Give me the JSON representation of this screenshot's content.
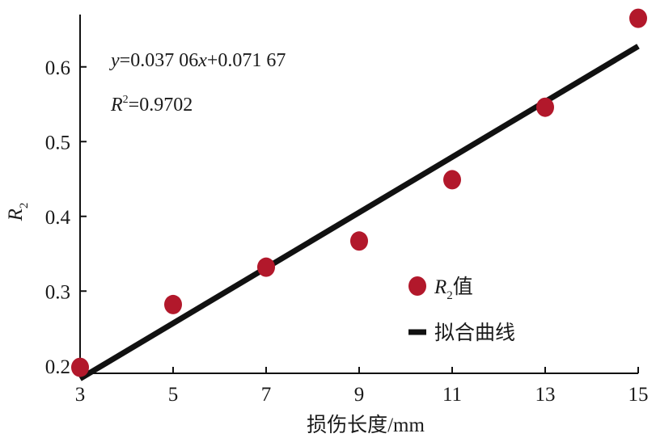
{
  "chart_data": {
    "type": "scatter",
    "title": "",
    "xlabel": "损伤长度/mm",
    "ylabel": {
      "base": "R",
      "sub": "2"
    },
    "xlim": [
      3,
      15
    ],
    "ylim": [
      0.19,
      0.67
    ],
    "xticks": [
      3,
      5,
      7,
      9,
      11,
      13,
      15
    ],
    "yticks": [
      0.2,
      0.3,
      0.4,
      0.5,
      0.6
    ],
    "x_tick_labels": [
      "3",
      "5",
      "7",
      "9",
      "11",
      "13",
      "15"
    ],
    "y_tick_labels": [
      "0.2",
      "0.3",
      "0.4",
      "0.5",
      "0.6"
    ],
    "series": [
      {
        "name": "R2值",
        "kind": "scatter",
        "color": "#b2182b",
        "x": [
          3,
          5,
          7,
          9,
          11,
          13,
          15
        ],
        "y": [
          0.198,
          0.282,
          0.332,
          0.367,
          0.449,
          0.546,
          0.665
        ]
      },
      {
        "name": "拟合曲线",
        "kind": "line",
        "color": "#111111",
        "slope": 0.03706,
        "intercept": 0.07167,
        "x": [
          3,
          15
        ]
      }
    ],
    "legend": {
      "position": "bottom-right",
      "scatter_label": {
        "base": "R",
        "sub": "2",
        "suffix": "值"
      },
      "line_label": "拟合曲线"
    },
    "annotations": {
      "equation": {
        "y_var": "y",
        "eq1": "=0.037 06",
        "x_var": "x",
        "eq2": "+0.071 67"
      },
      "r_squared": {
        "base": "R",
        "sup": "2",
        "value": "=0.9702"
      }
    },
    "grid": false
  }
}
